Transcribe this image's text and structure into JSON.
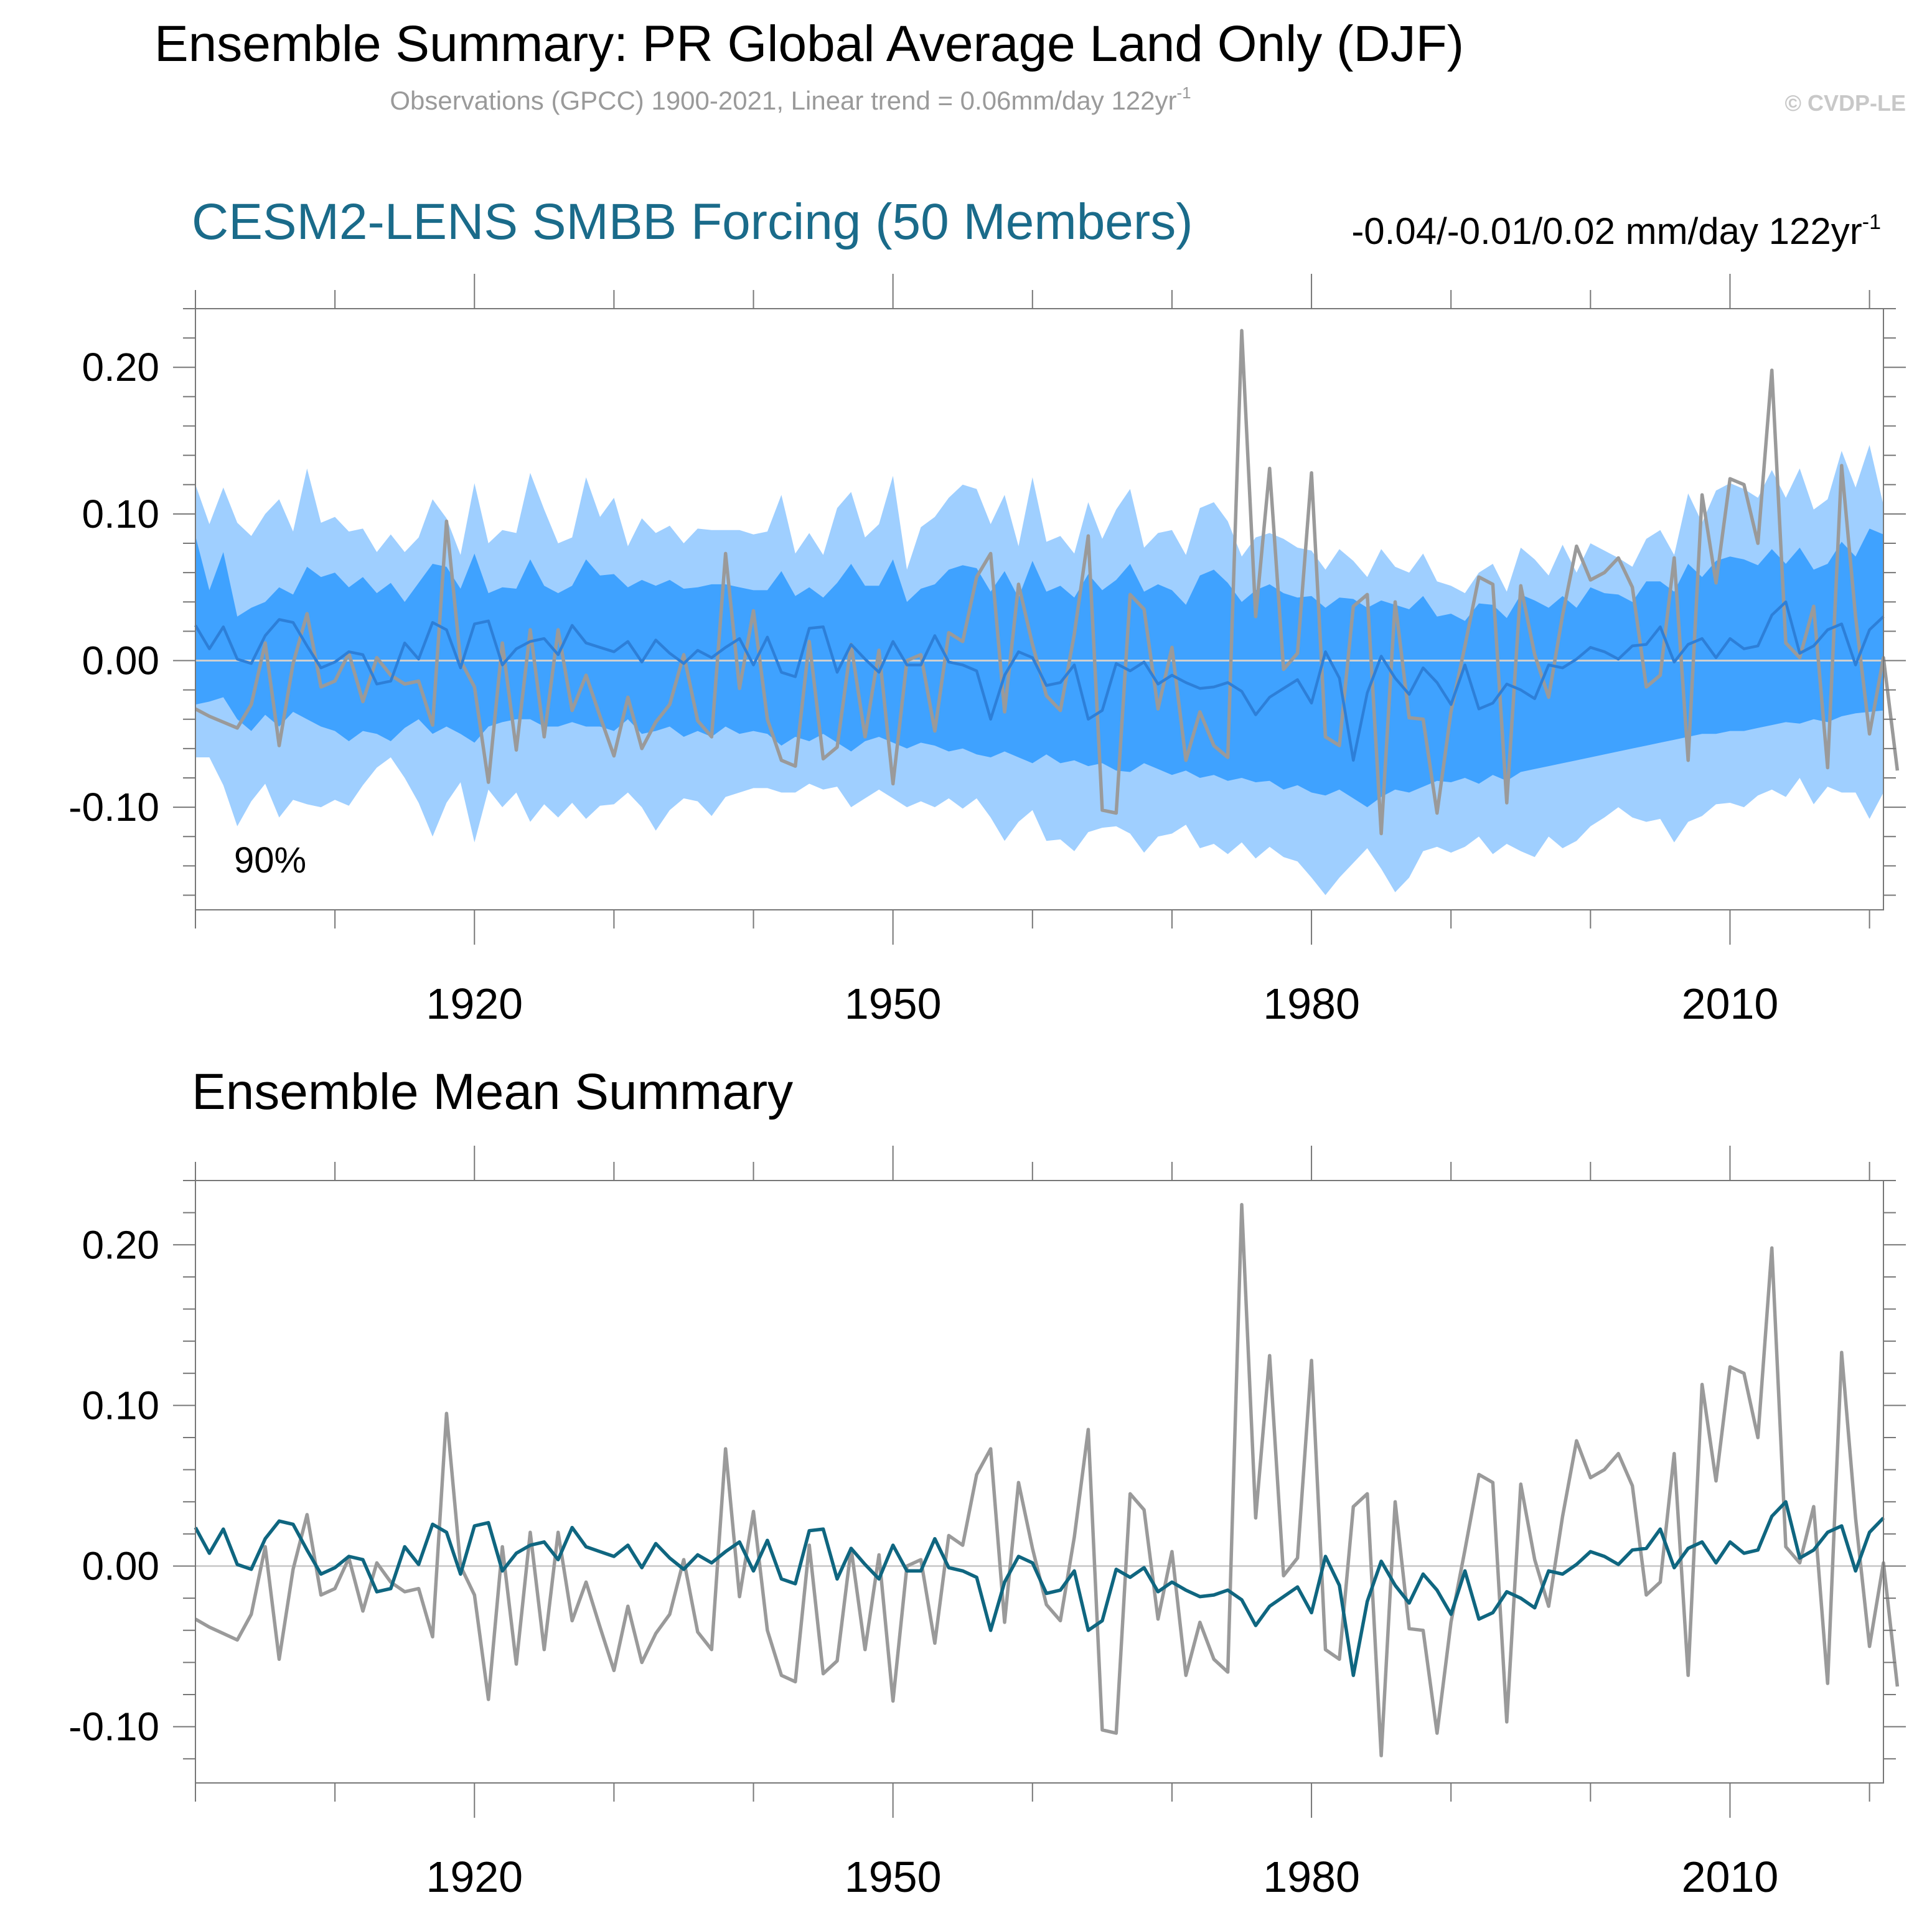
{
  "title": "Ensemble Summary: PR Global Average Land Only (DJF)",
  "subtitle": "Observations (GPCC) 1900-2021, Linear trend = 0.06mm/day 122yr",
  "subtitle_sup": "-1",
  "copyright": "© CVDP-LE",
  "colors": {
    "observed": "#9a9a9a",
    "ensemble_mean_top": "#2d7fd8",
    "ensemble_mean_bottom": "#0f6680",
    "band_outer": "#9fcfff",
    "band_inner": "#3fa2ff",
    "model_title": "#1a6b8a",
    "zero_line": "#cfcfcf"
  },
  "chart_data": [
    {
      "type": "line",
      "panel": "top",
      "title": "CESM2-LENS SMBB Forcing (50 Members)",
      "trend_label": "-0.04/-0.01/0.02 mm/day 122yr",
      "trend_sup": "-1",
      "band_label": "90%",
      "x_start": 1900,
      "xlim": [
        1900,
        2021
      ],
      "ylim": [
        -0.17,
        0.24
      ],
      "xticks": [
        1920,
        1950,
        1980,
        2010
      ],
      "yticks": [
        0.2,
        0.1,
        0.0,
        -0.1
      ],
      "ytick_labels": [
        "0.20",
        "0.10",
        "0.00",
        "-0.10"
      ],
      "bands": {
        "outer_upper": [
          0.12,
          0.093,
          0.118,
          0.094,
          0.085,
          0.1,
          0.11,
          0.088,
          0.131,
          0.094,
          0.098,
          0.088,
          0.09,
          0.074,
          0.086,
          0.074,
          0.084,
          0.11,
          0.097,
          0.072,
          0.121,
          0.08,
          0.089,
          0.087,
          0.128,
          0.103,
          0.08,
          0.084,
          0.125,
          0.098,
          0.111,
          0.078,
          0.097,
          0.087,
          0.092,
          0.08,
          0.09,
          0.089,
          0.089,
          0.089,
          0.086,
          0.088,
          0.113,
          0.073,
          0.087,
          0.072,
          0.104,
          0.115,
          0.084,
          0.093,
          0.126,
          0.062,
          0.091,
          0.098,
          0.111,
          0.12,
          0.117,
          0.093,
          0.113,
          0.078,
          0.125,
          0.081,
          0.085,
          0.073,
          0.108,
          0.083,
          0.103,
          0.117,
          0.077,
          0.087,
          0.089,
          0.072,
          0.104,
          0.108,
          0.095,
          0.071,
          0.084,
          0.087,
          0.083,
          0.077,
          0.075,
          0.062,
          0.076,
          0.068,
          0.057,
          0.076,
          0.064,
          0.06,
          0.073,
          0.054,
          0.051,
          0.046,
          0.06,
          0.066,
          0.047,
          0.077,
          0.069,
          0.058,
          0.079,
          0.06,
          0.08,
          0.075,
          0.07,
          0.064,
          0.083,
          0.089,
          0.072,
          0.114,
          0.094,
          0.116,
          0.121,
          0.117,
          0.111,
          0.13,
          0.111,
          0.131,
          0.103,
          0.11,
          0.143,
          0.118,
          0.147,
          0.106
        ],
        "inner_upper": [
          0.085,
          0.048,
          0.074,
          0.03,
          0.036,
          0.04,
          0.05,
          0.045,
          0.064,
          0.057,
          0.06,
          0.05,
          0.057,
          0.046,
          0.053,
          0.04,
          0.053,
          0.066,
          0.064,
          0.049,
          0.073,
          0.046,
          0.05,
          0.049,
          0.069,
          0.051,
          0.046,
          0.051,
          0.069,
          0.058,
          0.059,
          0.05,
          0.055,
          0.051,
          0.055,
          0.049,
          0.05,
          0.052,
          0.052,
          0.05,
          0.048,
          0.048,
          0.061,
          0.044,
          0.05,
          0.043,
          0.053,
          0.066,
          0.051,
          0.051,
          0.069,
          0.04,
          0.049,
          0.052,
          0.062,
          0.065,
          0.063,
          0.047,
          0.061,
          0.043,
          0.068,
          0.047,
          0.051,
          0.043,
          0.059,
          0.048,
          0.055,
          0.066,
          0.047,
          0.052,
          0.048,
          0.038,
          0.058,
          0.062,
          0.053,
          0.04,
          0.048,
          0.052,
          0.046,
          0.043,
          0.044,
          0.036,
          0.043,
          0.042,
          0.036,
          0.041,
          0.038,
          0.035,
          0.044,
          0.03,
          0.032,
          0.027,
          0.039,
          0.038,
          0.029,
          0.045,
          0.041,
          0.036,
          0.044,
          0.036,
          0.05,
          0.046,
          0.045,
          0.04,
          0.054,
          0.054,
          0.047,
          0.066,
          0.057,
          0.068,
          0.071,
          0.069,
          0.065,
          0.076,
          0.066,
          0.077,
          0.062,
          0.066,
          0.081,
          0.071,
          0.09,
          0.086
        ],
        "inner_lower": [
          -0.03,
          -0.028,
          -0.025,
          -0.04,
          -0.048,
          -0.037,
          -0.045,
          -0.035,
          -0.04,
          -0.045,
          -0.048,
          -0.055,
          -0.048,
          -0.05,
          -0.055,
          -0.046,
          -0.04,
          -0.05,
          -0.045,
          -0.05,
          -0.056,
          -0.045,
          -0.042,
          -0.04,
          -0.04,
          -0.045,
          -0.045,
          -0.042,
          -0.045,
          -0.045,
          -0.048,
          -0.04,
          -0.05,
          -0.048,
          -0.045,
          -0.052,
          -0.048,
          -0.052,
          -0.045,
          -0.05,
          -0.048,
          -0.05,
          -0.058,
          -0.052,
          -0.055,
          -0.05,
          -0.056,
          -0.062,
          -0.055,
          -0.052,
          -0.056,
          -0.06,
          -0.056,
          -0.058,
          -0.062,
          -0.06,
          -0.064,
          -0.066,
          -0.062,
          -0.066,
          -0.07,
          -0.064,
          -0.07,
          -0.068,
          -0.072,
          -0.07,
          -0.075,
          -0.076,
          -0.07,
          -0.074,
          -0.078,
          -0.075,
          -0.08,
          -0.078,
          -0.082,
          -0.08,
          -0.083,
          -0.082,
          -0.088,
          -0.085,
          -0.09,
          -0.092,
          -0.088,
          -0.094,
          -0.1,
          -0.093,
          -0.088,
          -0.09,
          -0.086,
          -0.082,
          -0.083,
          -0.08,
          -0.084,
          -0.078,
          -0.082,
          -0.076,
          -0.074,
          -0.072,
          -0.07,
          -0.068,
          -0.066,
          -0.064,
          -0.062,
          -0.06,
          -0.058,
          -0.056,
          -0.054,
          -0.052,
          -0.05,
          -0.05,
          -0.048,
          -0.048,
          -0.046,
          -0.044,
          -0.042,
          -0.043,
          -0.04,
          -0.042,
          -0.038,
          -0.036,
          -0.035,
          -0.034
        ],
        "outer_lower": [
          -0.066,
          -0.066,
          -0.085,
          -0.113,
          -0.096,
          -0.084,
          -0.107,
          -0.095,
          -0.098,
          -0.1,
          -0.095,
          -0.099,
          -0.085,
          -0.073,
          -0.066,
          -0.08,
          -0.097,
          -0.12,
          -0.097,
          -0.083,
          -0.124,
          -0.088,
          -0.1,
          -0.09,
          -0.11,
          -0.098,
          -0.107,
          -0.097,
          -0.108,
          -0.099,
          -0.098,
          -0.09,
          -0.1,
          -0.116,
          -0.102,
          -0.094,
          -0.096,
          -0.106,
          -0.093,
          -0.09,
          -0.087,
          -0.087,
          -0.09,
          -0.09,
          -0.084,
          -0.088,
          -0.086,
          -0.1,
          -0.094,
          -0.088,
          -0.094,
          -0.1,
          -0.096,
          -0.1,
          -0.094,
          -0.101,
          -0.094,
          -0.107,
          -0.123,
          -0.11,
          -0.102,
          -0.123,
          -0.122,
          -0.13,
          -0.117,
          -0.114,
          -0.113,
          -0.118,
          -0.131,
          -0.12,
          -0.118,
          -0.112,
          -0.128,
          -0.125,
          -0.132,
          -0.124,
          -0.135,
          -0.127,
          -0.134,
          -0.137,
          -0.148,
          -0.16,
          -0.148,
          -0.138,
          -0.128,
          -0.142,
          -0.158,
          -0.148,
          -0.13,
          -0.127,
          -0.131,
          -0.127,
          -0.12,
          -0.132,
          -0.125,
          -0.13,
          -0.134,
          -0.12,
          -0.128,
          -0.123,
          -0.113,
          -0.107,
          -0.1,
          -0.107,
          -0.11,
          -0.108,
          -0.124,
          -0.11,
          -0.106,
          -0.098,
          -0.097,
          -0.1,
          -0.092,
          -0.088,
          -0.093,
          -0.08,
          -0.098,
          -0.086,
          -0.09,
          -0.09,
          -0.108,
          -0.09
        ]
      },
      "series": [
        {
          "name": "Observations (GPCC)",
          "color_key": "observed",
          "values": [
            -0.033,
            -0.038,
            -0.042,
            -0.046,
            -0.03,
            0.012,
            -0.058,
            -0.002,
            0.032,
            -0.018,
            -0.014,
            0.005,
            -0.028,
            0.002,
            -0.01,
            -0.016,
            -0.014,
            -0.044,
            0.095,
            0.0,
            -0.018,
            -0.083,
            0.012,
            -0.061,
            0.021,
            -0.052,
            0.021,
            -0.034,
            -0.01,
            -0.038,
            -0.065,
            -0.025,
            -0.06,
            -0.042,
            -0.03,
            0.004,
            -0.041,
            -0.052,
            0.073,
            -0.019,
            0.034,
            -0.04,
            -0.068,
            -0.072,
            0.013,
            -0.067,
            -0.059,
            0.011,
            -0.052,
            0.007,
            -0.084,
            0.0,
            0.004,
            -0.048,
            0.019,
            0.013,
            0.057,
            0.073,
            -0.035,
            0.052,
            0.011,
            -0.024,
            -0.034,
            0.018,
            0.085,
            -0.102,
            -0.104,
            0.045,
            0.035,
            -0.033,
            0.009,
            -0.068,
            -0.035,
            -0.058,
            -0.066,
            0.225,
            0.03,
            0.131,
            -0.006,
            0.005,
            0.128,
            -0.052,
            -0.058,
            0.037,
            0.045,
            -0.118,
            0.04,
            -0.039,
            -0.04,
            -0.104,
            -0.035,
            0.01,
            0.057,
            0.052,
            -0.097,
            0.051,
            0.004,
            -0.025,
            0.031,
            0.078,
            0.055,
            0.06,
            0.07,
            0.05,
            -0.018,
            -0.01,
            0.07,
            -0.068,
            0.113,
            0.053,
            0.124,
            0.12,
            0.08,
            0.198,
            0.012,
            0.002,
            0.037,
            -0.073,
            0.133,
            0.03,
            -0.05,
            0.002,
            -0.075
          ]
        },
        {
          "name": "Ensemble Mean",
          "color_key": "ensemble_mean_top",
          "values": [
            0.024,
            0.008,
            0.023,
            0.001,
            -0.002,
            0.017,
            0.028,
            0.026,
            0.01,
            -0.005,
            -0.001,
            0.006,
            0.004,
            -0.016,
            -0.014,
            0.012,
            0.001,
            0.026,
            0.021,
            -0.005,
            0.025,
            0.027,
            -0.003,
            0.008,
            0.013,
            0.015,
            0.004,
            0.024,
            0.012,
            0.009,
            0.006,
            0.013,
            -0.001,
            0.014,
            0.005,
            -0.002,
            0.007,
            0.002,
            0.009,
            0.015,
            -0.003,
            0.016,
            -0.008,
            -0.011,
            0.022,
            0.023,
            -0.008,
            0.011,
            0.001,
            -0.008,
            0.013,
            -0.003,
            -0.003,
            0.017,
            -0.001,
            -0.003,
            -0.007,
            -0.04,
            -0.01,
            0.006,
            0.002,
            -0.017,
            -0.015,
            -0.003,
            -0.04,
            -0.034,
            -0.002,
            -0.007,
            -0.001,
            -0.016,
            -0.01,
            -0.015,
            -0.019,
            -0.018,
            -0.015,
            -0.021,
            -0.037,
            -0.025,
            -0.019,
            -0.013,
            -0.029,
            0.006,
            -0.012,
            -0.068,
            -0.022,
            0.003,
            -0.012,
            -0.023,
            -0.005,
            -0.015,
            -0.03,
            -0.003,
            -0.033,
            -0.029,
            -0.016,
            -0.02,
            -0.026,
            -0.003,
            -0.005,
            0.001,
            0.009,
            0.006,
            0.001,
            0.01,
            0.011,
            0.023,
            -0.001,
            0.011,
            0.015,
            0.002,
            0.015,
            0.008,
            0.01,
            0.031,
            0.04,
            0.005,
            0.01,
            0.021,
            0.025,
            -0.003,
            0.021,
            0.03
          ]
        }
      ]
    },
    {
      "type": "line",
      "panel": "bottom",
      "title": "Ensemble Mean Summary",
      "x_start": 1900,
      "xlim": [
        1900,
        2021
      ],
      "ylim": [
        -0.135,
        0.24
      ],
      "xticks": [
        1920,
        1950,
        1980,
        2010
      ],
      "yticks": [
        0.2,
        0.1,
        0.0,
        -0.1
      ],
      "ytick_labels": [
        "0.20",
        "0.10",
        "0.00",
        "-0.10"
      ],
      "series_ref": [
        "Observations (GPCC)",
        "Ensemble Mean"
      ],
      "series_colors": [
        "observed",
        "ensemble_mean_bottom"
      ]
    }
  ]
}
